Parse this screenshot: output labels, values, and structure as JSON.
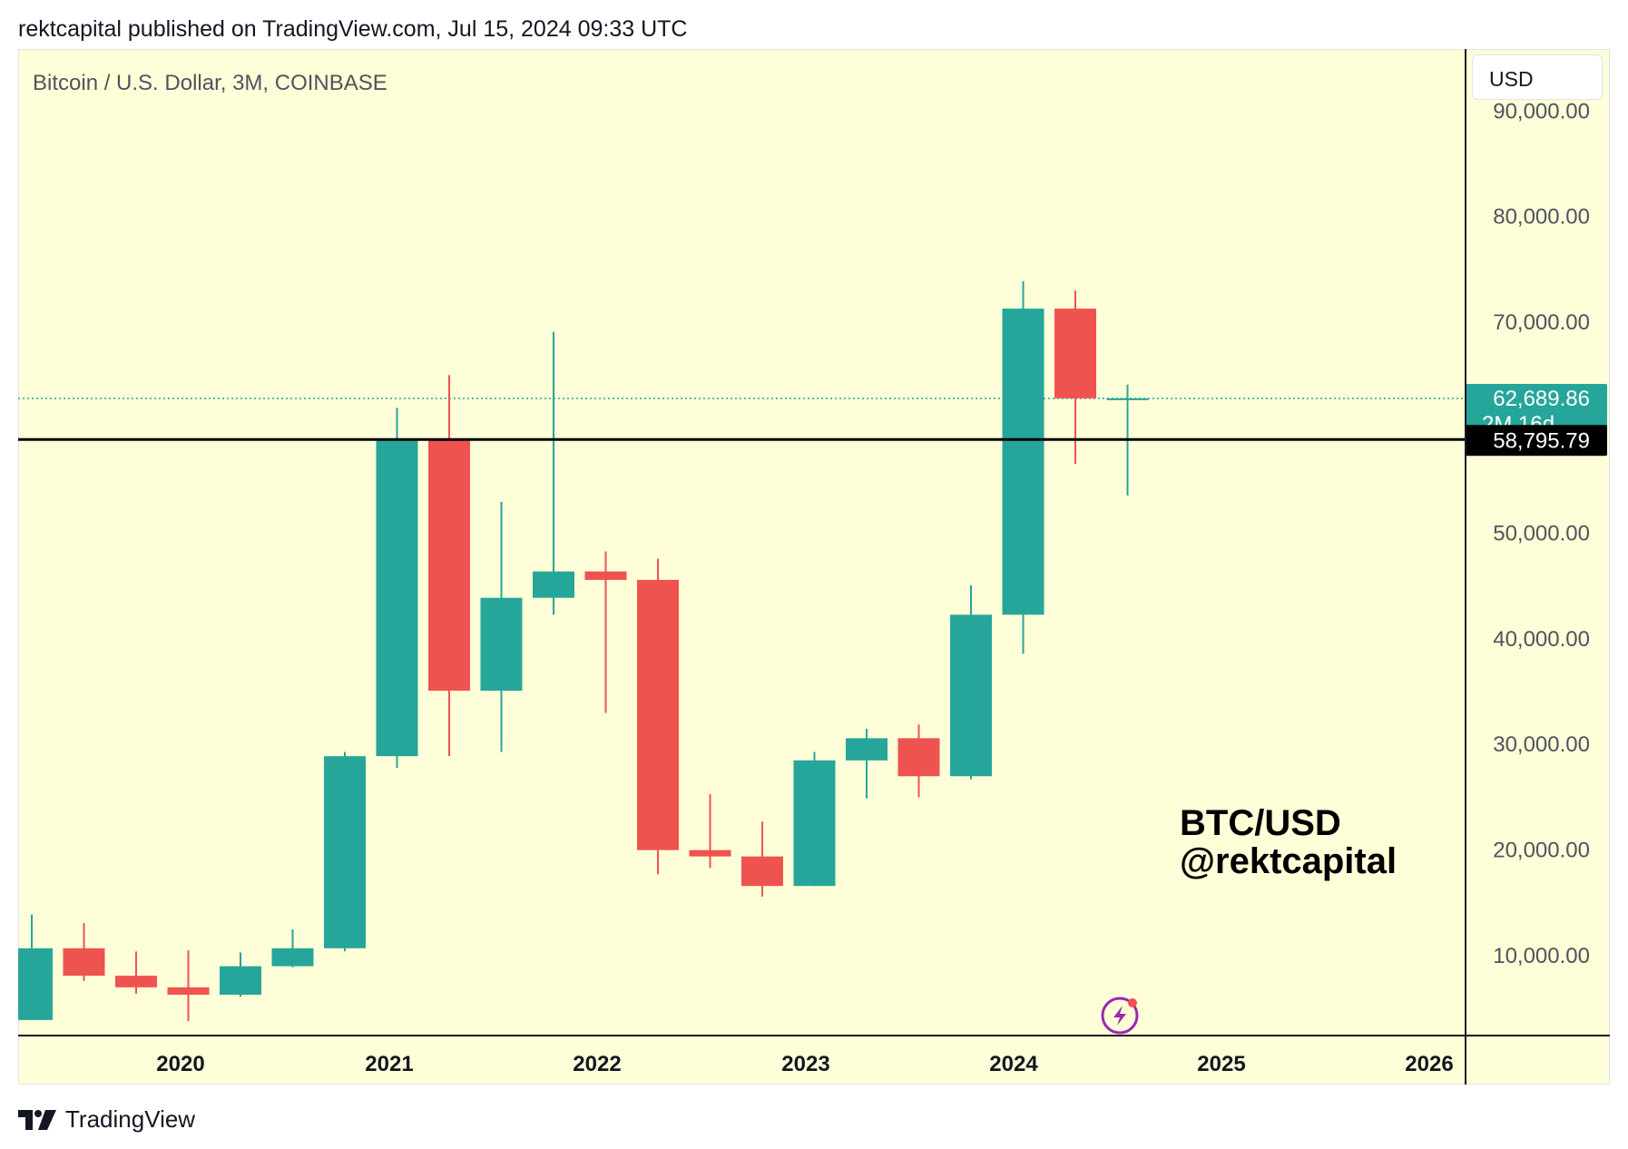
{
  "header": {
    "text": "rektcapital published on TradingView.com, Jul 15, 2024 09:33 UTC"
  },
  "symbol_title": "Bitcoin / U.S. Dollar, 3M, COINBASE",
  "currency_button": "USD",
  "footer": {
    "brand": "TradingView"
  },
  "watermark": {
    "line1": "BTC/USD",
    "line2": "@rektcapital"
  },
  "colors": {
    "up": "#26a69a",
    "down": "#ef5350",
    "background": "#fefed8",
    "level_line": "#000000"
  },
  "price_labels": {
    "last_price": "62,689.86",
    "countdown": "2M 16d",
    "level": "58,795.79"
  },
  "chart_data": {
    "type": "candlestick",
    "title": "Bitcoin / U.S. Dollar, 3M, COINBASE",
    "interval": "3M",
    "ylim": [
      3000,
      92000
    ],
    "y_ticks": [
      10000,
      20000,
      30000,
      40000,
      50000,
      60000,
      70000,
      80000,
      90000
    ],
    "y_tick_labels": [
      "10,000.00",
      "20,000.00",
      "30,000.00",
      "40,000.00",
      "50,000.00",
      "",
      "70,000.00",
      "80,000.00",
      "90,000.00"
    ],
    "x_labels": [
      "2020",
      "2021",
      "2022",
      "2023",
      "2024",
      "2025",
      "2026"
    ],
    "horizontal_level": 58795.79,
    "last_price": 62689.86,
    "candles": [
      {
        "period": "2019-Q3",
        "open": 3800,
        "high": 13800,
        "low": 3800,
        "close": 10600
      },
      {
        "period": "2019-Q4",
        "open": 10600,
        "high": 13000,
        "low": 7500,
        "close": 8000
      },
      {
        "period": "2020-Q1",
        "open": 8000,
        "high": 10300,
        "low": 6300,
        "close": 6900
      },
      {
        "period": "2020-Q2",
        "open": 6900,
        "high": 10400,
        "low": 3700,
        "close": 6200
      },
      {
        "period": "2020-Q3",
        "open": 6200,
        "high": 10200,
        "low": 6000,
        "close": 8900
      },
      {
        "period": "2020-Q4",
        "open": 8900,
        "high": 12400,
        "low": 8800,
        "close": 10600
      },
      {
        "period": "2021-Q1",
        "open": 10600,
        "high": 29200,
        "low": 10300,
        "close": 28800
      },
      {
        "period": "2021-Q2",
        "open": 28800,
        "high": 61800,
        "low": 27700,
        "close": 58800
      },
      {
        "period": "2021-Q3",
        "open": 58800,
        "high": 64900,
        "low": 28800,
        "close": 35000
      },
      {
        "period": "2021-Q4",
        "open": 35000,
        "high": 52900,
        "low": 29200,
        "close": 43800
      },
      {
        "period": "2022-Q1",
        "open": 43800,
        "high": 69000,
        "low": 42200,
        "close": 46300
      },
      {
        "period": "2022-Q2",
        "open": 46300,
        "high": 48200,
        "low": 32900,
        "close": 45500
      },
      {
        "period": "2022-Q3",
        "open": 45500,
        "high": 47500,
        "low": 17600,
        "close": 19900
      },
      {
        "period": "2022-Q4",
        "open": 19900,
        "high": 25200,
        "low": 18200,
        "close": 19300
      },
      {
        "period": "2023-Q1",
        "open": 19300,
        "high": 22600,
        "low": 15500,
        "close": 16500
      },
      {
        "period": "2023-Q2",
        "open": 16500,
        "high": 29200,
        "low": 16500,
        "close": 28400
      },
      {
        "period": "2023-Q3",
        "open": 28400,
        "high": 31400,
        "low": 24800,
        "close": 30500
      },
      {
        "period": "2023-Q4",
        "open": 30500,
        "high": 31800,
        "low": 24900,
        "close": 26900
      },
      {
        "period": "2024-Q1",
        "open": 26900,
        "high": 45000,
        "low": 26600,
        "close": 42200
      },
      {
        "period": "2024-Q2",
        "open": 42200,
        "high": 73800,
        "low": 38500,
        "close": 71200
      },
      {
        "period": "2024-Q3",
        "open": 71200,
        "high": 72900,
        "low": 56500,
        "close": 62700
      },
      {
        "period": "2024-Q4",
        "open": 62700,
        "high": 64000,
        "low": 53500,
        "close": 62700
      }
    ]
  }
}
